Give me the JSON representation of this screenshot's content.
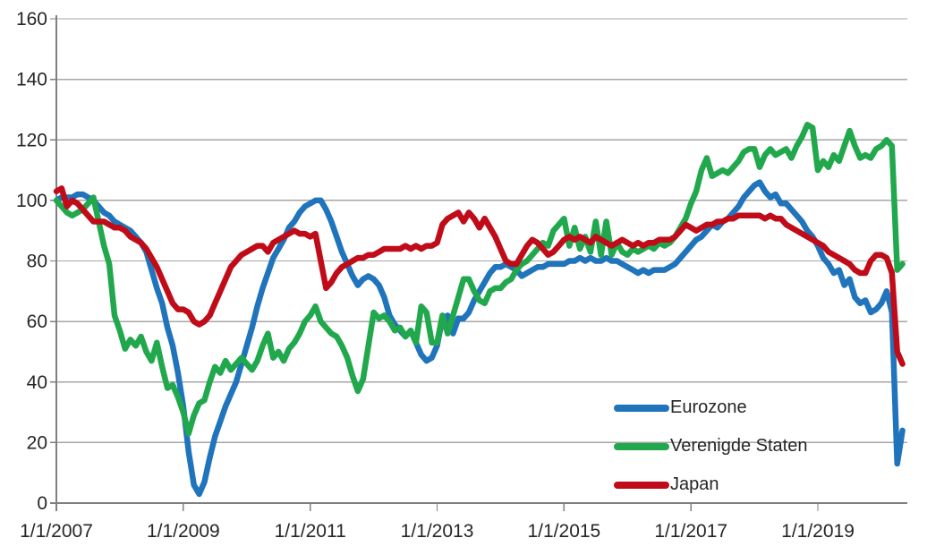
{
  "chart_data": {
    "type": "line",
    "title": "",
    "grid": true,
    "legend_position": "inside-bottom-right",
    "x_axis": {
      "unit": "monthly",
      "start": "2007-01",
      "end": "2020-05",
      "tick_labels": [
        "1/1/2007",
        "1/1/2009",
        "1/1/2011",
        "1/1/2013",
        "1/1/2015",
        "1/1/2017",
        "1/1/2019"
      ],
      "tick_month_indices": [
        0,
        24,
        48,
        72,
        96,
        120,
        144
      ]
    },
    "y_axis": {
      "min": 0,
      "max": 160,
      "step": 20,
      "tick_labels": [
        "0",
        "20",
        "40",
        "60",
        "80",
        "100",
        "120",
        "140",
        "160"
      ]
    },
    "colors": {
      "grid": "#a6a6a6",
      "axis": "#7f7f7f",
      "text": "#262626"
    },
    "series": [
      {
        "name": "Eurozone",
        "color": "#1f74bc",
        "values": [
          100,
          101,
          101,
          101,
          102,
          102,
          101,
          100,
          98,
          96,
          95,
          93,
          92,
          91,
          90,
          88,
          86,
          83,
          77,
          71,
          66,
          58,
          52,
          43,
          32,
          17,
          6,
          3,
          7,
          15,
          22,
          27,
          32,
          36,
          40,
          46,
          52,
          58,
          65,
          71,
          76,
          81,
          84,
          87,
          91,
          93,
          96,
          98,
          99,
          100,
          100,
          97,
          93,
          88,
          83,
          79,
          75,
          72,
          74,
          75,
          74,
          72,
          68,
          62,
          59,
          57,
          55,
          57,
          53,
          49,
          47,
          48,
          52,
          61,
          62,
          56,
          61,
          61,
          63,
          67,
          70,
          73,
          76,
          78,
          78,
          79,
          78,
          77,
          75,
          76,
          77,
          78,
          78,
          79,
          79,
          79,
          79,
          80,
          80,
          81,
          80,
          81,
          80,
          80,
          81,
          80,
          80,
          79,
          78,
          77,
          76,
          77,
          76,
          77,
          77,
          77,
          78,
          79,
          81,
          83,
          85,
          87,
          88,
          90,
          92,
          91,
          93,
          94,
          96,
          98,
          101,
          103,
          105,
          106,
          103,
          101,
          102,
          99,
          99,
          97,
          95,
          93,
          90,
          88,
          85,
          81,
          79,
          76,
          77,
          72,
          74,
          68,
          66,
          67,
          63,
          64,
          66,
          70,
          63,
          13,
          24
        ]
      },
      {
        "name": "Verenigde Staten",
        "color": "#21a84d",
        "values": [
          100,
          98,
          96,
          95,
          96,
          97,
          99,
          101,
          93,
          85,
          79,
          62,
          57,
          51,
          54,
          52,
          55,
          50,
          47,
          53,
          45,
          38,
          39,
          35,
          30,
          23,
          29,
          33,
          34,
          40,
          45,
          43,
          47,
          44,
          46,
          48,
          46,
          44,
          47,
          52,
          56,
          48,
          50,
          47,
          51,
          53,
          56,
          60,
          62,
          65,
          60,
          58,
          56,
          55,
          52,
          48,
          42,
          37,
          41,
          52,
          63,
          61,
          62,
          60,
          57,
          58,
          55,
          57,
          53,
          65,
          63,
          53,
          53,
          62,
          56,
          62,
          68,
          74,
          74,
          70,
          67,
          66,
          70,
          71,
          71,
          73,
          74,
          77,
          79,
          80,
          82,
          84,
          86,
          85,
          90,
          92,
          94,
          85,
          91,
          84,
          88,
          83,
          93,
          82,
          93,
          82,
          86,
          83,
          82,
          84,
          83,
          84,
          85,
          84,
          86,
          85,
          86,
          88,
          91,
          94,
          99,
          103,
          110,
          114,
          108,
          109,
          110,
          109,
          111,
          113,
          116,
          117,
          117,
          111,
          115,
          117,
          115,
          116,
          117,
          114,
          118,
          121,
          125,
          124,
          110,
          113,
          111,
          115,
          113,
          118,
          123,
          118,
          114,
          115,
          114,
          117,
          118,
          120,
          118,
          77,
          79
        ]
      },
      {
        "name": "Japan",
        "color": "#c00b18",
        "values": [
          103,
          104,
          98,
          100,
          99,
          97,
          95,
          93,
          93,
          93,
          92,
          91,
          91,
          90,
          88,
          87,
          86,
          84,
          81,
          78,
          74,
          70,
          66,
          64,
          64,
          63,
          60,
          59,
          60,
          62,
          66,
          70,
          74,
          78,
          80,
          82,
          83,
          84,
          85,
          85,
          83,
          86,
          87,
          88,
          89,
          90,
          89,
          89,
          88,
          89,
          80,
          71,
          73,
          76,
          78,
          79,
          80,
          81,
          81,
          82,
          82,
          83,
          84,
          84,
          84,
          84,
          85,
          84,
          85,
          84,
          85,
          85,
          86,
          92,
          94,
          95,
          96,
          93,
          96,
          94,
          91,
          94,
          91,
          88,
          84,
          80,
          79,
          79,
          82,
          85,
          87,
          86,
          84,
          82,
          83,
          85,
          87,
          88,
          87,
          88,
          87,
          86,
          88,
          87,
          86,
          85,
          86,
          87,
          86,
          85,
          86,
          85,
          86,
          86,
          87,
          87,
          87,
          88,
          90,
          92,
          91,
          90,
          91,
          92,
          92,
          93,
          93,
          94,
          94,
          95,
          95,
          95,
          95,
          95,
          94,
          95,
          94,
          94,
          92,
          91,
          90,
          89,
          88,
          87,
          86,
          85,
          83,
          82,
          81,
          80,
          79,
          77,
          76,
          76,
          80,
          82,
          82,
          81,
          76,
          50,
          46
        ]
      }
    ]
  }
}
